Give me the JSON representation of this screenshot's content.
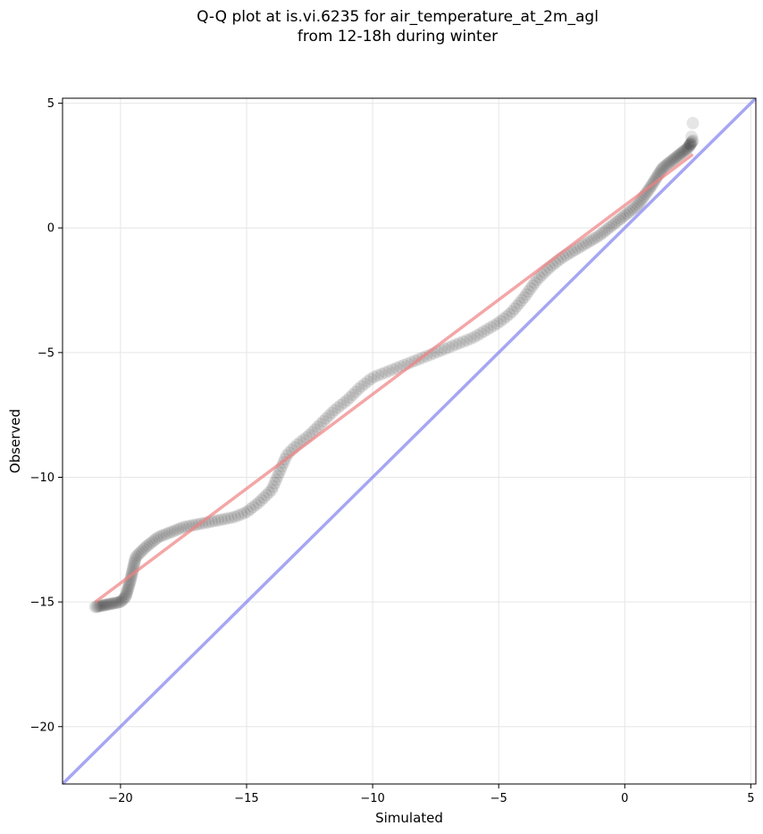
{
  "chart_data": {
    "type": "scatter",
    "title_lines": [
      "Q-Q plot at is.vi.6235 for air_temperature_at_2m_agl",
      "from 12-18h during winter"
    ],
    "xlabel": "Simulated",
    "ylabel": "Observed",
    "xlim": [
      -22.3,
      5.2
    ],
    "ylim": [
      -22.3,
      5.2
    ],
    "xticks": [
      -20,
      -15,
      -10,
      -5,
      0,
      5
    ],
    "yticks": [
      -20,
      -15,
      -10,
      -5,
      0,
      5
    ],
    "tick_labels_x": [
      "−20",
      "−15",
      "−10",
      "−5",
      "0",
      "5"
    ],
    "tick_labels_y": [
      "−20",
      "−15",
      "−10",
      "−5",
      "0",
      "5"
    ],
    "grid": true,
    "colors": {
      "points": "#000000",
      "fit_line": "#f08080",
      "identity_line": "#8080f0"
    },
    "identity_line": {
      "x": [
        -22.3,
        5.2
      ],
      "y": [
        -22.3,
        5.2
      ]
    },
    "fit_line": {
      "x": [
        -21.0,
        2.7
      ],
      "y": [
        -15.0,
        2.95
      ]
    },
    "quantile_curve": {
      "x": [
        -21.0,
        -20.0,
        -19.8,
        -19.6,
        -19.4,
        -19.0,
        -18.5,
        -17.5,
        -16.5,
        -15.5,
        -15.0,
        -14.5,
        -14.0,
        -13.7,
        -13.4,
        -13.0,
        -12.5,
        -12.0,
        -11.5,
        -11.0,
        -10.5,
        -10.0,
        -9.0,
        -8.0,
        -7.5,
        -7.0,
        -6.5,
        -6.0,
        -5.5,
        -5.0,
        -4.5,
        -4.0,
        -3.5,
        -3.0,
        -2.5,
        -2.0,
        -1.5,
        -1.0,
        -0.5,
        0.0,
        0.5,
        1.0,
        1.5,
        2.0,
        2.5,
        2.7
      ],
      "y": [
        -15.2,
        -15.0,
        -14.8,
        -14.1,
        -13.2,
        -12.8,
        -12.4,
        -12.0,
        -11.8,
        -11.6,
        -11.4,
        -11.0,
        -10.5,
        -9.8,
        -9.1,
        -8.7,
        -8.3,
        -7.8,
        -7.3,
        -6.9,
        -6.4,
        -6.0,
        -5.6,
        -5.2,
        -5.0,
        -4.8,
        -4.6,
        -4.4,
        -4.1,
        -3.8,
        -3.4,
        -2.8,
        -2.1,
        -1.6,
        -1.2,
        -0.9,
        -0.6,
        -0.3,
        0.1,
        0.5,
        0.9,
        1.6,
        2.4,
        2.8,
        3.2,
        3.5
      ]
    },
    "outliers": {
      "x": [
        2.7,
        2.65,
        2.6
      ],
      "y": [
        4.2,
        3.65,
        3.35
      ]
    },
    "n_points": 260
  }
}
